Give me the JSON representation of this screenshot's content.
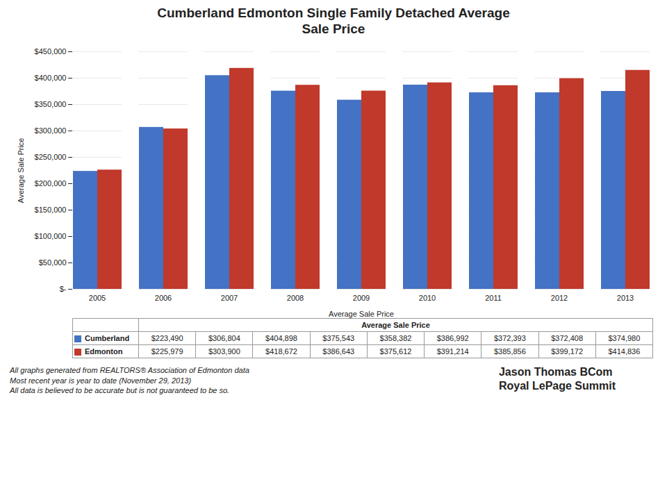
{
  "chart_data": {
    "type": "bar",
    "title": "Cumberland Edmonton Single Family Detached Average\nSale Price",
    "xlabel": "Average Sale Price",
    "ylabel": "Average Sale Price",
    "categories": [
      "2005",
      "2006",
      "2007",
      "2008",
      "2009",
      "2010",
      "2011",
      "2012",
      "2013"
    ],
    "series": [
      {
        "name": "Cumberland",
        "color": "#4472C4",
        "values": [
          223490,
          306804,
          404898,
          375543,
          358382,
          386992,
          372393,
          372408,
          374980
        ],
        "value_labels": [
          "$223,490",
          "$306,804",
          "$404,898",
          "$375,543",
          "$358,382",
          "$386,992",
          "$372,393",
          "$372,408",
          "$374,980"
        ]
      },
      {
        "name": "Edmonton",
        "color": "#C0392B",
        "values": [
          225979,
          303900,
          418672,
          386643,
          375612,
          391214,
          385856,
          399172,
          414836
        ],
        "value_labels": [
          "$225,979",
          "$303,900",
          "$418,672",
          "$386,643",
          "$375,612",
          "$391,214",
          "$385,856",
          "$399,172",
          "$414,836"
        ]
      }
    ],
    "ylim": [
      0,
      450000
    ],
    "yticks": [
      {
        "value": 0,
        "label": "$-"
      },
      {
        "value": 50000,
        "label": "$50,000"
      },
      {
        "value": 100000,
        "label": "$100,000"
      },
      {
        "value": 150000,
        "label": "$150,000"
      },
      {
        "value": 200000,
        "label": "$200,000"
      },
      {
        "value": 250000,
        "label": "$250,000"
      },
      {
        "value": 300000,
        "label": "$300,000"
      },
      {
        "value": 350000,
        "label": "$350,000"
      },
      {
        "value": 400000,
        "label": "$400,000"
      },
      {
        "value": 450000,
        "label": "$450,000"
      }
    ],
    "grid": true,
    "annotations": [
      "Average Sale Price",
      "All graphs generated from REALTORS® Association of Edmonton data\nMost recent year is year to date (November 29, 2013)\nAll data is believed to be accurate but is not guaranteed to be so.",
      "Jason Thomas BCom\nRoyal LePage Summit"
    ]
  }
}
